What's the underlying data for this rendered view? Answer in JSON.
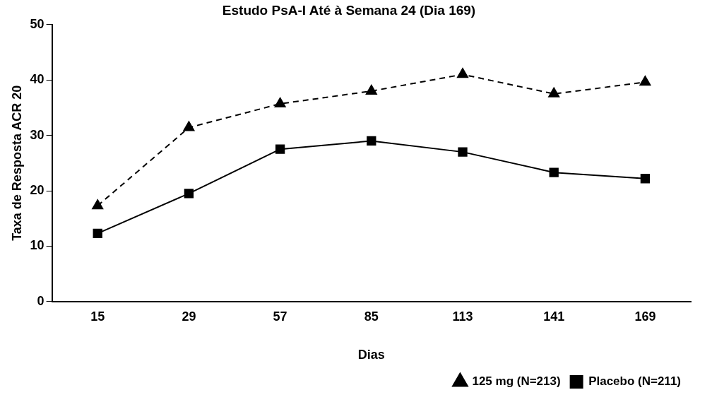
{
  "chart_data": {
    "type": "line",
    "title": "Estudo PsA-I Até à Semana 24 (Dia 169)",
    "xlabel": "Dias",
    "ylabel": "Taxa de Resposta ACR 20",
    "categories": [
      "15",
      "29",
      "57",
      "85",
      "113",
      "141",
      "169"
    ],
    "ylim": [
      0,
      50
    ],
    "yticks": [
      0,
      10,
      20,
      30,
      40,
      50
    ],
    "grid": false,
    "legend": "bottom right",
    "series": [
      {
        "name": "125 mg (N=213)",
        "color": "#000000",
        "marker": "triangle",
        "line_style": "dashed",
        "values": [
          17.3,
          31.4,
          35.7,
          38,
          41,
          37.5,
          39.6
        ]
      },
      {
        "name": "Placebo (N=211)",
        "color": "#000000",
        "marker": "square",
        "line_style": "solid",
        "values": [
          12.3,
          19.5,
          27.5,
          29,
          27,
          23.3,
          22.2
        ]
      }
    ]
  }
}
